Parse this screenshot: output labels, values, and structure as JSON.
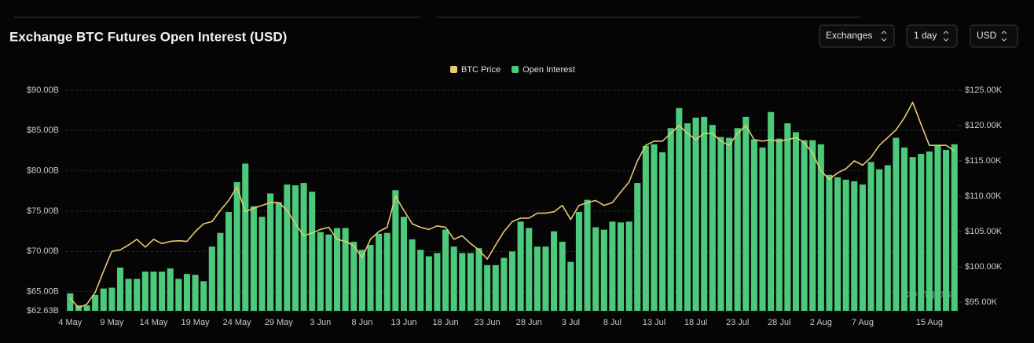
{
  "header": {
    "controls": [
      "Exchanges",
      "1 day",
      "USD"
    ]
  },
  "chart_data": {
    "type": "bar",
    "title": "Exchange BTC Futures Open Interest (USD)",
    "watermark": "coinglass",
    "legend": "top",
    "grid": true,
    "categories": [
      "4 May",
      null,
      null,
      null,
      null,
      "9 May",
      null,
      null,
      null,
      null,
      "14 May",
      null,
      null,
      null,
      null,
      "19 May",
      null,
      null,
      null,
      null,
      "24 May",
      null,
      null,
      null,
      null,
      "29 May",
      null,
      null,
      null,
      null,
      "3 Jun",
      null,
      null,
      null,
      null,
      "8 Jun",
      null,
      null,
      null,
      null,
      "13 Jun",
      null,
      null,
      null,
      null,
      "18 Jun",
      null,
      null,
      null,
      null,
      "23 Jun",
      null,
      null,
      null,
      null,
      "28 Jun",
      null,
      null,
      null,
      null,
      "3 Jul",
      null,
      null,
      null,
      null,
      "8 Jul",
      null,
      null,
      null,
      null,
      "13 Jul",
      null,
      null,
      null,
      null,
      "18 Jul",
      null,
      null,
      null,
      null,
      "23 Jul",
      null,
      null,
      null,
      null,
      "28 Jul",
      null,
      null,
      null,
      null,
      "2 Aug",
      null,
      null,
      null,
      null,
      "7 Aug",
      null,
      null,
      null,
      null,
      null,
      null,
      null,
      "15 Aug",
      null,
      null,
      null
    ],
    "ylim": [
      62.63,
      90
    ],
    "yticks": [
      {
        "value": 62.63,
        "label": "$62.63B"
      },
      {
        "value": 65,
        "label": "$65.00B"
      },
      {
        "value": 70,
        "label": "$70.00B"
      },
      {
        "value": 75,
        "label": "$75.00B"
      },
      {
        "value": 80,
        "label": "$80.00B"
      },
      {
        "value": 85,
        "label": "$85.00B"
      },
      {
        "value": 90,
        "label": "$90.00B"
      }
    ],
    "y2lim": [
      93.78,
      125
    ],
    "y2ticks": [
      {
        "value": 95,
        "label": "$95.00K"
      },
      {
        "value": 100,
        "label": "$100.00K"
      },
      {
        "value": 105,
        "label": "$105.00K"
      },
      {
        "value": 110,
        "label": "$110.00K"
      },
      {
        "value": 115,
        "label": "$115.00K"
      },
      {
        "value": 120,
        "label": "$120.00K"
      },
      {
        "value": 125,
        "label": "$125.00K"
      }
    ],
    "series": [
      {
        "name": "BTC Price",
        "type": "line",
        "axis": "y2",
        "color": "#e8c872",
        "values": [
          95.6,
          94.2,
          94.7,
          96.4,
          99.4,
          102.2,
          102.4,
          103.1,
          103.9,
          102.8,
          103.9,
          103.3,
          103.6,
          103.7,
          103.6,
          105.0,
          106.1,
          106.4,
          108.0,
          109.4,
          111.3,
          107.8,
          108.3,
          108.7,
          109.1,
          109.1,
          108.0,
          106.1,
          104.4,
          104.8,
          105.3,
          105.6,
          103.9,
          103.6,
          103.0,
          101.3,
          103.9,
          105.0,
          105.6,
          110.0,
          108.0,
          106.1,
          105.6,
          105.3,
          105.8,
          105.6,
          103.9,
          104.4,
          103.3,
          102.4,
          101.1,
          103.1,
          105.0,
          106.4,
          106.9,
          106.9,
          107.6,
          107.6,
          107.8,
          108.7,
          106.7,
          108.7,
          109.1,
          109.4,
          108.7,
          109.1,
          110.6,
          112.0,
          115.0,
          117.2,
          117.8,
          117.8,
          118.9,
          120.0,
          118.9,
          118.0,
          118.9,
          118.9,
          117.8,
          117.2,
          118.9,
          120.0,
          118.0,
          117.8,
          118.0,
          117.8,
          118.0,
          118.3,
          117.6,
          116.1,
          113.6,
          112.4,
          113.3,
          113.9,
          115.0,
          114.4,
          115.5,
          117.2,
          118.3,
          119.4,
          121.1,
          123.3,
          120.2,
          117.2,
          117.2,
          117.2,
          116.4
        ]
      },
      {
        "name": "Open Interest",
        "type": "bar",
        "axis": "y",
        "color": "#4cc97a",
        "values": [
          64.8,
          63.3,
          63.3,
          64.6,
          65.4,
          65.5,
          68.0,
          66.6,
          66.6,
          67.5,
          67.5,
          67.5,
          67.9,
          66.6,
          67.2,
          67.1,
          66.3,
          70.6,
          72.3,
          74.9,
          78.6,
          80.9,
          75.6,
          74.3,
          77.2,
          76.1,
          78.3,
          78.2,
          78.5,
          77.4,
          72.4,
          72.1,
          72.9,
          72.9,
          71.2,
          70.2,
          70.8,
          72.2,
          72.3,
          77.6,
          74.3,
          71.5,
          70.2,
          69.4,
          69.8,
          72.7,
          70.6,
          69.8,
          69.8,
          70.4,
          68.3,
          68.3,
          69.2,
          70.0,
          73.7,
          72.9,
          70.6,
          70.6,
          72.5,
          71.2,
          68.7,
          74.9,
          76.4,
          73.0,
          72.7,
          73.7,
          73.6,
          73.7,
          78.5,
          83.1,
          83.3,
          82.3,
          85.3,
          87.8,
          85.9,
          86.6,
          86.7,
          85.7,
          84.2,
          84.1,
          85.3,
          86.7,
          83.9,
          82.9,
          87.3,
          84.0,
          85.9,
          84.8,
          83.8,
          83.8,
          83.3,
          79.5,
          79.2,
          78.9,
          78.7,
          78.3,
          81.1,
          80.2,
          80.7,
          84.1,
          82.9,
          81.7,
          82.1,
          82.4,
          83.2,
          82.6,
          83.3
        ]
      }
    ]
  }
}
